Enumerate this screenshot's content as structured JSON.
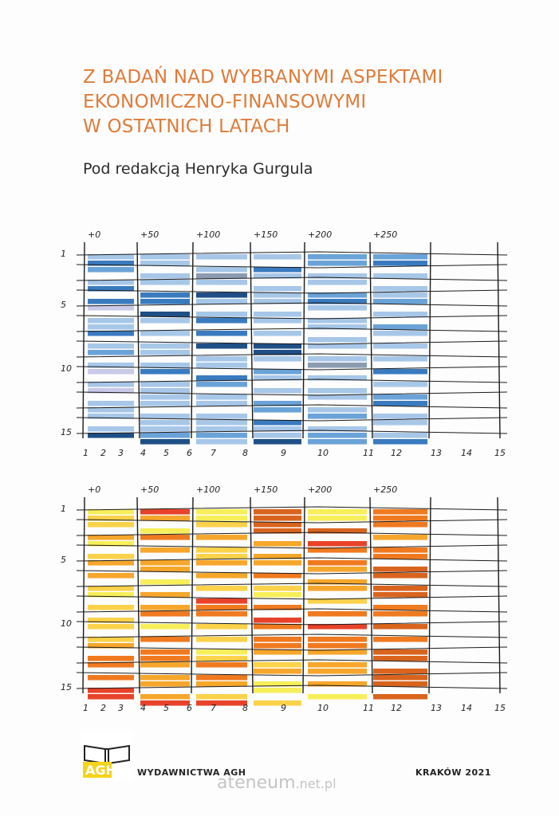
{
  "book": {
    "title_lines": [
      "Z BADAŃ NAD WYBRANYMI ASPEKTAMI",
      "EKONOMICZNO-FINANSOWYMI",
      "W OSTATNICH LATACH"
    ],
    "editor": "Pod redakcją Henryka Gurgula",
    "publisher": "WYDAWNICTWA AGH",
    "place_year": "KRAKÓW 2021",
    "logo_text": "AGH"
  },
  "watermark": {
    "main": "ateneum",
    "suffix": ".net.pl"
  },
  "illustration": {
    "top_labels": [
      "+0",
      "+50",
      "+100",
      "+150",
      "+200",
      "+250"
    ],
    "row_labels": [
      "1",
      "5",
      "10",
      "15"
    ],
    "column_labels": [
      "1",
      "2",
      "3",
      "4",
      "5",
      "6",
      "7",
      "8",
      "9",
      "10",
      "11",
      "12",
      "13",
      "14",
      "15"
    ],
    "blue_palette": [
      "#1f4f86",
      "#3a7bbf",
      "#6aa3d8",
      "#a7c7e8",
      "#c9c9e8",
      "#8c9bb0"
    ],
    "orange_palette": [
      "#e8432a",
      "#f07a1f",
      "#f6a72b",
      "#fbd24a",
      "#f7ef5a",
      "#d9641e"
    ],
    "blue_grid": [
      [
        3,
        1,
        2,
        "",
        3,
        1,
        "",
        1,
        4,
        "",
        3,
        3,
        1,
        "",
        3,
        2,
        "",
        3,
        4,
        "",
        3,
        4,
        "",
        3,
        3,
        3,
        "",
        3,
        0
      ],
      [
        3,
        3,
        "",
        3,
        3,
        "",
        1,
        1,
        "",
        0,
        3,
        "",
        3,
        "",
        3,
        3,
        "",
        3,
        1,
        "",
        3,
        3,
        3,
        3,
        "",
        3,
        3,
        3,
        2,
        0
      ],
      [
        3,
        "",
        3,
        5,
        3,
        "",
        0,
        3,
        "",
        3,
        1,
        "",
        1,
        "",
        0,
        "",
        3,
        3,
        "",
        1,
        2,
        "",
        3,
        3,
        "",
        3,
        3,
        3,
        2,
        3
      ],
      [
        3,
        "",
        1,
        3,
        "",
        3,
        3,
        3,
        "",
        3,
        3,
        "",
        3,
        "",
        0,
        0,
        3,
        "",
        2,
        3,
        "",
        3,
        "",
        2,
        2,
        "",
        1,
        3,
        3,
        0
      ],
      [
        2,
        2,
        "",
        3,
        3,
        "",
        2,
        1,
        3,
        "",
        3,
        3,
        "",
        3,
        3,
        "",
        3,
        5,
        "",
        3,
        "",
        3,
        3,
        "",
        3,
        2,
        "",
        3,
        2,
        2
      ],
      [
        2,
        1,
        "",
        3,
        "",
        3,
        3,
        2,
        "",
        3,
        "",
        2,
        3,
        "",
        3,
        "",
        3,
        "",
        1,
        "",
        3,
        "",
        2,
        1,
        "",
        3,
        3,
        "",
        3,
        1
      ]
    ],
    "orange_grid": [
      [
        4,
        3,
        3,
        "",
        2,
        4,
        "",
        3,
        2,
        "",
        2,
        "",
        3,
        4,
        "",
        3,
        "",
        3,
        3,
        "",
        3,
        2,
        "",
        1,
        1,
        "",
        1,
        "",
        0,
        0
      ],
      [
        0,
        2,
        "",
        4,
        1,
        "",
        2,
        "",
        2,
        2,
        "",
        4,
        "",
        2,
        "",
        2,
        1,
        "",
        4,
        "",
        1,
        "",
        1,
        1,
        2,
        "",
        2,
        2,
        "",
        2,
        0
      ],
      [
        4,
        4,
        3,
        "",
        2,
        "",
        3,
        3,
        2,
        "",
        2,
        "",
        3,
        "",
        0,
        1,
        1,
        "",
        3,
        "",
        3,
        "",
        4,
        3,
        1,
        "",
        1,
        2,
        "",
        3,
        0
      ],
      [
        5,
        5,
        5,
        5,
        "",
        2,
        "",
        2,
        2,
        "",
        1,
        "",
        3,
        4,
        "",
        1,
        "",
        0,
        1,
        "",
        1,
        1,
        2,
        "",
        3,
        2,
        "",
        4,
        4,
        "",
        3
      ],
      [
        4,
        4,
        "",
        5,
        "",
        0,
        1,
        "",
        1,
        2,
        "",
        2,
        2,
        "",
        3,
        "",
        1,
        "",
        0,
        "",
        1,
        1,
        2,
        "",
        2,
        2,
        "",
        2,
        "",
        4
      ],
      [
        1,
        1,
        1,
        "",
        2,
        "",
        1,
        1,
        "",
        5,
        5,
        "",
        5,
        5,
        "",
        1,
        1,
        "",
        5,
        "",
        1,
        "",
        5,
        5,
        "",
        5,
        5,
        5,
        "",
        5
      ]
    ]
  }
}
